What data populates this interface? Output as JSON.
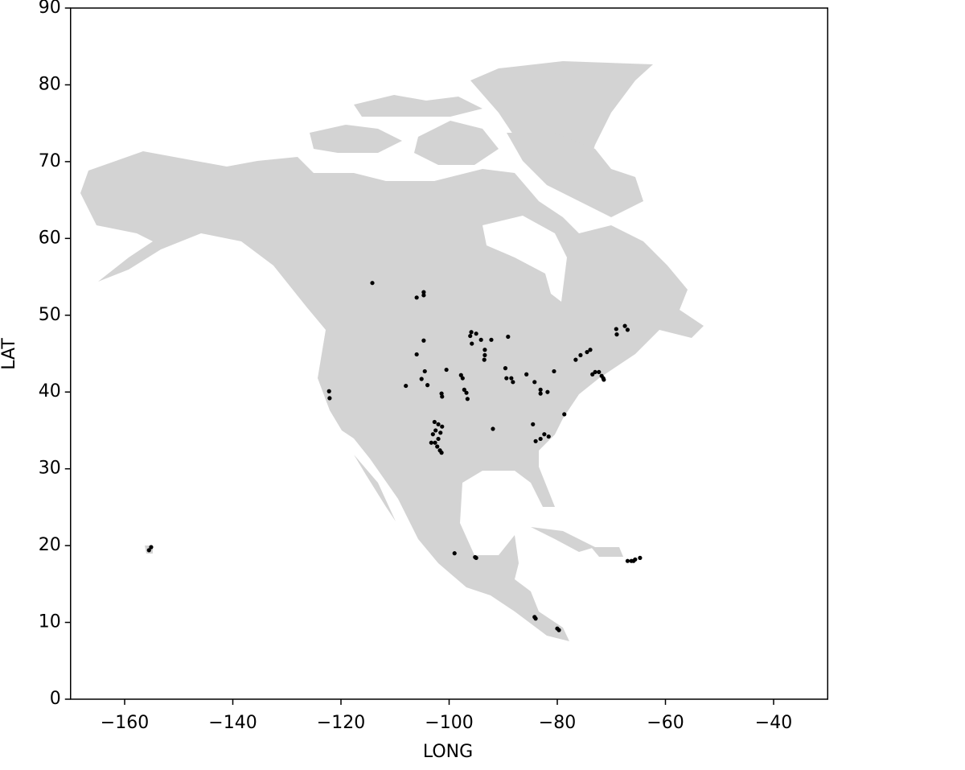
{
  "chart_data": {
    "type": "scatter",
    "x_label": "LONG",
    "y_label": "LAT",
    "xlim": [
      -170,
      -30
    ],
    "xticks": [
      {
        "value": -160,
        "label": "−160"
      },
      {
        "value": -140,
        "label": "−140"
      },
      {
        "value": -120,
        "label": "−120"
      },
      {
        "value": -100,
        "label": "−100"
      },
      {
        "value": -80,
        "label": "−80"
      },
      {
        "value": -60,
        "label": "−60"
      },
      {
        "value": -40,
        "label": "−40"
      }
    ],
    "ylim": [
      0,
      90
    ],
    "yticks": [
      0,
      10,
      20,
      30,
      40,
      50,
      60,
      70,
      80,
      90
    ],
    "color": "#000000",
    "x": [
      -114.2,
      -106.0,
      -104.7,
      -104.7,
      -104.7,
      -106.0,
      -104.5,
      -105.1,
      -104.0,
      -108.0,
      -100.5,
      -101.4,
      -101.3,
      -95.9,
      -96.1,
      -95.8,
      -95.0,
      -94.1,
      -92.2,
      -93.4,
      -93.4,
      -93.5,
      -89.1,
      -97.8,
      -97.5,
      -97.2,
      -96.8,
      -96.6,
      -89.6,
      -89.4,
      -88.5,
      -88.2,
      -85.7,
      -84.2,
      -83.1,
      -83.1,
      -81.8,
      -80.6,
      -91.9,
      -84.5,
      -84.0,
      -83.1,
      -82.4,
      -81.6,
      -78.7,
      -76.6,
      -75.7,
      -73.9,
      -74.5,
      -73.5,
      -73.0,
      -72.3,
      -71.8,
      -71.5,
      -71.4,
      -69.1,
      -69.0,
      -67.5,
      -67.0,
      -102.7,
      -102.0,
      -101.3,
      -102.5,
      -101.6,
      -103.0,
      -102.0,
      -102.6,
      -102.2,
      -101.7,
      -101.4,
      -103.3,
      -122.2,
      -122.1,
      -99.0,
      -95.2,
      -95.0,
      -84.2,
      -84.0,
      -80.0,
      -79.7,
      -67.0,
      -66.3,
      -65.9,
      -65.6,
      -64.7,
      -155.1,
      -155.5
    ],
    "y": [
      54.2,
      52.3,
      53.0,
      52.6,
      46.7,
      44.9,
      42.7,
      41.7,
      40.9,
      40.8,
      42.9,
      39.8,
      39.4,
      47.8,
      47.3,
      46.3,
      47.6,
      46.8,
      46.8,
      45.5,
      44.8,
      44.2,
      47.2,
      42.2,
      41.8,
      40.3,
      39.9,
      39.1,
      43.1,
      41.8,
      41.8,
      41.3,
      42.3,
      41.3,
      40.3,
      39.8,
      40.0,
      42.7,
      35.2,
      35.8,
      33.6,
      33.9,
      34.5,
      34.2,
      37.1,
      44.2,
      44.8,
      45.5,
      45.2,
      42.3,
      42.6,
      42.6,
      42.1,
      41.8,
      41.6,
      48.2,
      47.5,
      48.6,
      48.1,
      36.1,
      35.8,
      35.5,
      35.0,
      34.7,
      34.5,
      33.9,
      33.4,
      32.9,
      32.4,
      32.1,
      33.4,
      40.1,
      39.2,
      19.0,
      18.5,
      18.4,
      10.7,
      10.5,
      9.2,
      9.0,
      18.0,
      18.0,
      18.0,
      18.2,
      18.4,
      19.8,
      19.4
    ]
  }
}
